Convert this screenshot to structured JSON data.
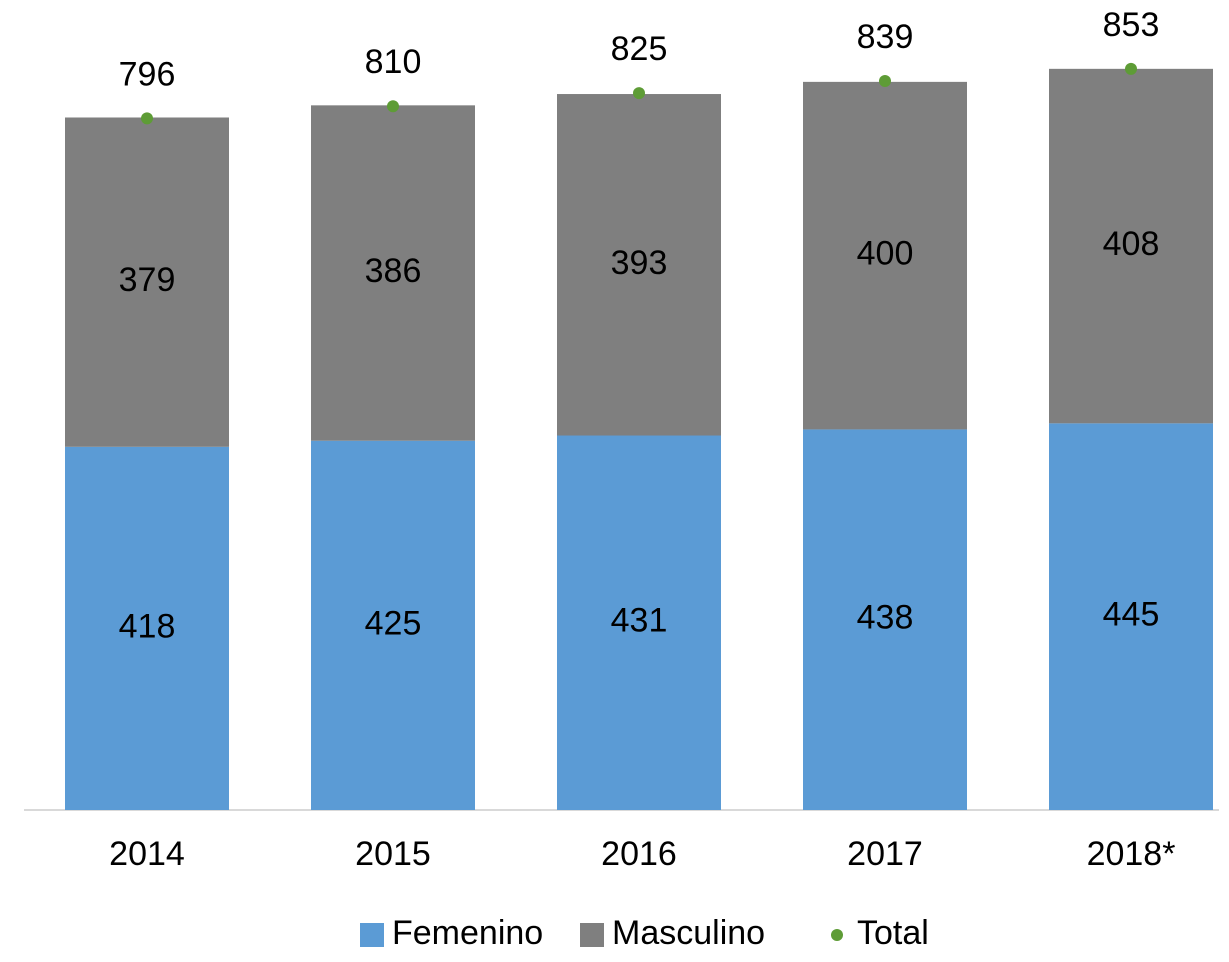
{
  "chart_data": {
    "type": "bar",
    "stacked": true,
    "categories": [
      "2014",
      "2015",
      "2016",
      "2017",
      "2018*"
    ],
    "series": [
      {
        "name": "Femenino",
        "color": "#5b9bd5",
        "values": [
          418,
          425,
          431,
          438,
          445
        ]
      },
      {
        "name": "Masculino",
        "color": "#7f7f7f",
        "values": [
          379,
          386,
          393,
          400,
          408
        ]
      },
      {
        "name": "Total",
        "color": "#5e9c36",
        "type": "dot",
        "values": [
          796,
          810,
          825,
          839,
          853
        ]
      }
    ],
    "ylim": [
      0,
      900
    ],
    "legend": "bottom"
  }
}
